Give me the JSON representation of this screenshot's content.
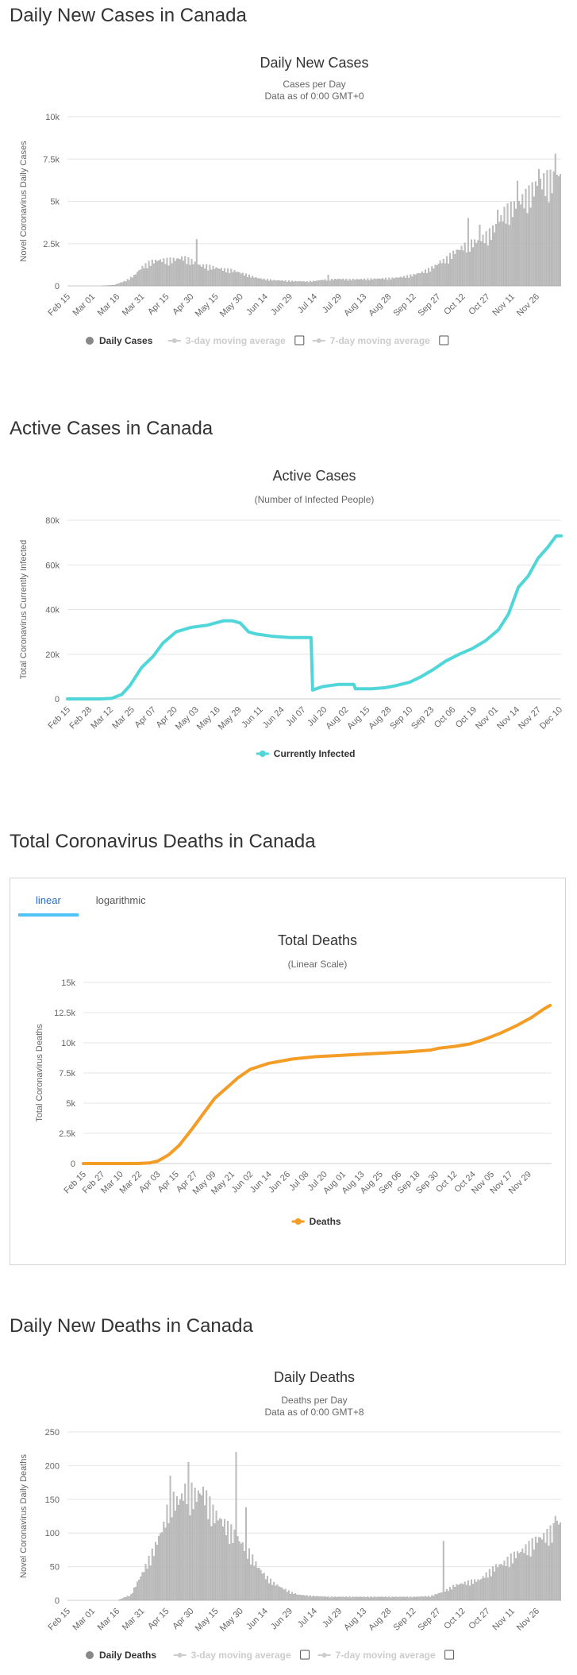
{
  "sections": {
    "daily_cases": "Daily New Cases in Canada",
    "active_cases": "Active Cases in Canada",
    "total_deaths": "Total Coronavirus Deaths in Canada",
    "daily_deaths": "Daily New Deaths in Canada"
  },
  "deaths_tabs": [
    "linear",
    "logarithmic"
  ],
  "chart_data": [
    {
      "id": "daily_cases",
      "type": "bar",
      "title": "Daily New Cases",
      "subtitle_lines": [
        "Cases per Day",
        "Data as of 0:00 GMT+0"
      ],
      "ylabel": "Novel Coronavirus Daily Cases",
      "ylim": [
        0,
        10000
      ],
      "yticks": [
        0,
        2500,
        5000,
        7500,
        10000
      ],
      "ytick_labels": [
        "0",
        "2.5k",
        "5k",
        "7.5k",
        "10k"
      ],
      "xtick_labels": [
        "Feb 15",
        "Mar 01",
        "Mar 16",
        "Mar 31",
        "Apr 15",
        "Apr 30",
        "May 15",
        "May 30",
        "Jun 14",
        "Jun 29",
        "Jul 14",
        "Jul 29",
        "Aug 13",
        "Aug 28",
        "Sep 12",
        "Sep 27",
        "Oct 12",
        "Oct 27",
        "Nov 11",
        "Nov 26"
      ],
      "xtick_days": [
        0,
        15,
        30,
        45,
        60,
        75,
        90,
        105,
        120,
        135,
        150,
        165,
        180,
        195,
        210,
        225,
        240,
        255,
        270,
        285
      ],
      "anchors": [
        [
          0,
          0
        ],
        [
          20,
          0
        ],
        [
          28,
          50
        ],
        [
          35,
          300
        ],
        [
          40,
          600
        ],
        [
          45,
          1100
        ],
        [
          50,
          1400
        ],
        [
          55,
          1500
        ],
        [
          60,
          1500
        ],
        [
          65,
          1550
        ],
        [
          70,
          1650
        ],
        [
          75,
          1450
        ],
        [
          80,
          1200
        ],
        [
          85,
          1150
        ],
        [
          90,
          1050
        ],
        [
          95,
          950
        ],
        [
          100,
          900
        ],
        [
          105,
          750
        ],
        [
          110,
          600
        ],
        [
          115,
          450
        ],
        [
          120,
          380
        ],
        [
          125,
          330
        ],
        [
          130,
          300
        ],
        [
          135,
          280
        ],
        [
          140,
          260
        ],
        [
          145,
          250
        ],
        [
          150,
          280
        ],
        [
          155,
          350
        ],
        [
          160,
          380
        ],
        [
          165,
          400
        ],
        [
          170,
          380
        ],
        [
          175,
          380
        ],
        [
          180,
          390
        ],
        [
          185,
          410
        ],
        [
          190,
          420
        ],
        [
          195,
          440
        ],
        [
          200,
          480
        ],
        [
          205,
          550
        ],
        [
          210,
          650
        ],
        [
          215,
          800
        ],
        [
          220,
          1000
        ],
        [
          225,
          1300
        ],
        [
          230,
          1600
        ],
        [
          235,
          2000
        ],
        [
          240,
          2300
        ],
        [
          245,
          2500
        ],
        [
          250,
          2700
        ],
        [
          255,
          3000
        ],
        [
          260,
          3500
        ],
        [
          265,
          4300
        ],
        [
          270,
          4600
        ],
        [
          275,
          5000
        ],
        [
          280,
          5400
        ],
        [
          285,
          6000
        ],
        [
          290,
          6200
        ],
        [
          295,
          6300
        ],
        [
          298,
          6400
        ]
      ],
      "spikes": [
        [
          78,
          2750
        ],
        [
          158,
          650
        ],
        [
          226,
          1500
        ],
        [
          238,
          2100
        ],
        [
          243,
          4000
        ],
        [
          250,
          3600
        ],
        [
          256,
          3400
        ],
        [
          261,
          4500
        ],
        [
          273,
          6200
        ],
        [
          286,
          6900
        ],
        [
          296,
          7800
        ],
        [
          299,
          6600
        ]
      ],
      "days": 300,
      "legend": [
        {
          "label": "Daily Cases",
          "active": true
        },
        {
          "label": "3-day moving average",
          "active": false
        },
        {
          "label": "7-day moving average",
          "active": false
        }
      ],
      "color": "#c0c0c0"
    },
    {
      "id": "active_cases",
      "type": "line",
      "title": "Active Cases",
      "subtitle_lines": [
        "(Number of Infected People)"
      ],
      "ylabel": "Total Coronavirus Currently Infected",
      "ylim": [
        0,
        80000
      ],
      "yticks": [
        0,
        20000,
        40000,
        60000,
        80000
      ],
      "ytick_labels": [
        "0",
        "20k",
        "40k",
        "60k",
        "80k"
      ],
      "xtick_labels": [
        "Feb 15",
        "Feb 28",
        "Mar 12",
        "Mar 25",
        "Apr 07",
        "Apr 20",
        "May 03",
        "May 16",
        "May 29",
        "Jun 11",
        "Jun 24",
        "Jul 07",
        "Jul 20",
        "Aug 02",
        "Aug 15",
        "Aug 28",
        "Sep 10",
        "Sep 23",
        "Oct 06",
        "Oct 19",
        "Nov 01",
        "Nov 14",
        "Nov 27",
        "Dec 10"
      ],
      "xtick_days": [
        0,
        13,
        26,
        39,
        52,
        65,
        78,
        91,
        104,
        117,
        130,
        143,
        156,
        169,
        182,
        195,
        208,
        221,
        234,
        247,
        260,
        273,
        286,
        299
      ],
      "points": [
        [
          0,
          0
        ],
        [
          20,
          0
        ],
        [
          27,
          300
        ],
        [
          33,
          2000
        ],
        [
          38,
          6000
        ],
        [
          45,
          14000
        ],
        [
          52,
          19000
        ],
        [
          58,
          25000
        ],
        [
          66,
          30000
        ],
        [
          75,
          32000
        ],
        [
          85,
          33000
        ],
        [
          95,
          35000
        ],
        [
          100,
          35000
        ],
        [
          105,
          34000
        ],
        [
          110,
          30000
        ],
        [
          115,
          29000
        ],
        [
          125,
          28000
        ],
        [
          135,
          27500
        ],
        [
          148,
          27500
        ],
        [
          149,
          4000
        ],
        [
          155,
          5500
        ],
        [
          165,
          6500
        ],
        [
          174,
          6500
        ],
        [
          175,
          4500
        ],
        [
          185,
          4500
        ],
        [
          193,
          5000
        ],
        [
          200,
          6000
        ],
        [
          208,
          7500
        ],
        [
          215,
          10000
        ],
        [
          222,
          13000
        ],
        [
          230,
          17000
        ],
        [
          238,
          20000
        ],
        [
          246,
          22500
        ],
        [
          254,
          26000
        ],
        [
          262,
          31000
        ],
        [
          268,
          38000
        ],
        [
          274,
          50000
        ],
        [
          280,
          55000
        ],
        [
          286,
          63000
        ],
        [
          292,
          68000
        ],
        [
          297,
          73000
        ],
        [
          300,
          73000
        ]
      ],
      "days": 300,
      "legend": [
        {
          "label": "Currently Infected",
          "active": true
        }
      ],
      "color": "#50d6d9"
    },
    {
      "id": "total_deaths",
      "type": "line",
      "title": "Total Deaths",
      "subtitle_lines": [
        "(Linear Scale)"
      ],
      "ylabel": "Total Coronavirus Deaths",
      "ylim": [
        0,
        15000
      ],
      "yticks": [
        0,
        2500,
        5000,
        7500,
        10000,
        12500,
        15000
      ],
      "ytick_labels": [
        "0",
        "2.5k",
        "5k",
        "7.5k",
        "10k",
        "12.5k",
        "15k"
      ],
      "xtick_labels": [
        "Feb 15",
        "Feb 27",
        "Mar 10",
        "Mar 22",
        "Apr 03",
        "Apr 15",
        "Apr 27",
        "May 09",
        "May 21",
        "Jun 02",
        "Jun 14",
        "Jun 26",
        "Jul 08",
        "Jul 20",
        "Aug 01",
        "Aug 13",
        "Aug 25",
        "Sep 06",
        "Sep 18",
        "Sep 30",
        "Oct 12",
        "Oct 24",
        "Nov 05",
        "Nov 17",
        "Nov 29"
      ],
      "xtick_days": [
        0,
        12,
        24,
        36,
        48,
        60,
        72,
        84,
        96,
        108,
        120,
        132,
        144,
        156,
        168,
        180,
        192,
        204,
        216,
        228,
        240,
        252,
        264,
        276,
        288
      ],
      "points": [
        [
          0,
          0
        ],
        [
          35,
          0
        ],
        [
          43,
          50
        ],
        [
          48,
          200
        ],
        [
          55,
          700
        ],
        [
          62,
          1500
        ],
        [
          70,
          2800
        ],
        [
          78,
          4200
        ],
        [
          85,
          5400
        ],
        [
          93,
          6300
        ],
        [
          100,
          7100
        ],
        [
          108,
          7800
        ],
        [
          120,
          8300
        ],
        [
          135,
          8650
        ],
        [
          150,
          8850
        ],
        [
          165,
          8950
        ],
        [
          180,
          9050
        ],
        [
          195,
          9150
        ],
        [
          210,
          9250
        ],
        [
          220,
          9350
        ],
        [
          225,
          9400
        ],
        [
          230,
          9550
        ],
        [
          240,
          9700
        ],
        [
          250,
          9900
        ],
        [
          260,
          10300
        ],
        [
          270,
          10800
        ],
        [
          280,
          11400
        ],
        [
          290,
          12100
        ],
        [
          298,
          12800
        ],
        [
          302,
          13100
        ]
      ],
      "days": 303,
      "legend": [
        {
          "label": "Deaths",
          "active": true
        }
      ],
      "color": "#f39c26"
    },
    {
      "id": "daily_deaths",
      "type": "bar",
      "title": "Daily Deaths",
      "subtitle_lines": [
        "Deaths per Day",
        "Data as of 0:00 GMT+8"
      ],
      "ylabel": "Novel Coronavirus Daily Deaths",
      "ylim": [
        0,
        250
      ],
      "yticks": [
        0,
        50,
        100,
        150,
        200,
        250
      ],
      "ytick_labels": [
        "0",
        "50",
        "100",
        "150",
        "200",
        "250"
      ],
      "xtick_labels": [
        "Feb 15",
        "Mar 01",
        "Mar 16",
        "Mar 31",
        "Apr 15",
        "Apr 30",
        "May 15",
        "May 30",
        "Jun 14",
        "Jun 29",
        "Jul 14",
        "Jul 29",
        "Aug 13",
        "Aug 28",
        "Sep 12",
        "Sep 27",
        "Oct 12",
        "Oct 27",
        "Nov 11",
        "Nov 26"
      ],
      "xtick_days": [
        0,
        15,
        30,
        45,
        60,
        75,
        90,
        105,
        120,
        135,
        150,
        165,
        180,
        195,
        210,
        225,
        240,
        255,
        270,
        285
      ],
      "anchors": [
        [
          0,
          0
        ],
        [
          30,
          0
        ],
        [
          38,
          8
        ],
        [
          45,
          40
        ],
        [
          52,
          75
        ],
        [
          58,
          110
        ],
        [
          62,
          150
        ],
        [
          67,
          145
        ],
        [
          72,
          165
        ],
        [
          77,
          155
        ],
        [
          82,
          160
        ],
        [
          88,
          130
        ],
        [
          94,
          115
        ],
        [
          100,
          100
        ],
        [
          105,
          85
        ],
        [
          110,
          70
        ],
        [
          115,
          50
        ],
        [
          120,
          35
        ],
        [
          125,
          25
        ],
        [
          130,
          18
        ],
        [
          135,
          12
        ],
        [
          140,
          8
        ],
        [
          150,
          6
        ],
        [
          160,
          5
        ],
        [
          170,
          5
        ],
        [
          180,
          5
        ],
        [
          190,
          5
        ],
        [
          200,
          5
        ],
        [
          210,
          5
        ],
        [
          220,
          6
        ],
        [
          225,
          10
        ],
        [
          230,
          15
        ],
        [
          235,
          22
        ],
        [
          240,
          25
        ],
        [
          245,
          28
        ],
        [
          250,
          30
        ],
        [
          255,
          40
        ],
        [
          260,
          50
        ],
        [
          265,
          55
        ],
        [
          270,
          65
        ],
        [
          275,
          72
        ],
        [
          280,
          80
        ],
        [
          285,
          90
        ],
        [
          290,
          95
        ],
        [
          295,
          105
        ],
        [
          298,
          115
        ]
      ],
      "spikes": [
        [
          62,
          185
        ],
        [
          73,
          205
        ],
        [
          102,
          220
        ],
        [
          108,
          138
        ],
        [
          228,
          88
        ],
        [
          296,
          125
        ]
      ],
      "days": 300,
      "legend": [
        {
          "label": "Daily Deaths",
          "active": true
        },
        {
          "label": "3-day moving average",
          "active": false
        },
        {
          "label": "7-day moving average",
          "active": false
        }
      ],
      "color": "#c0c0c0"
    }
  ]
}
